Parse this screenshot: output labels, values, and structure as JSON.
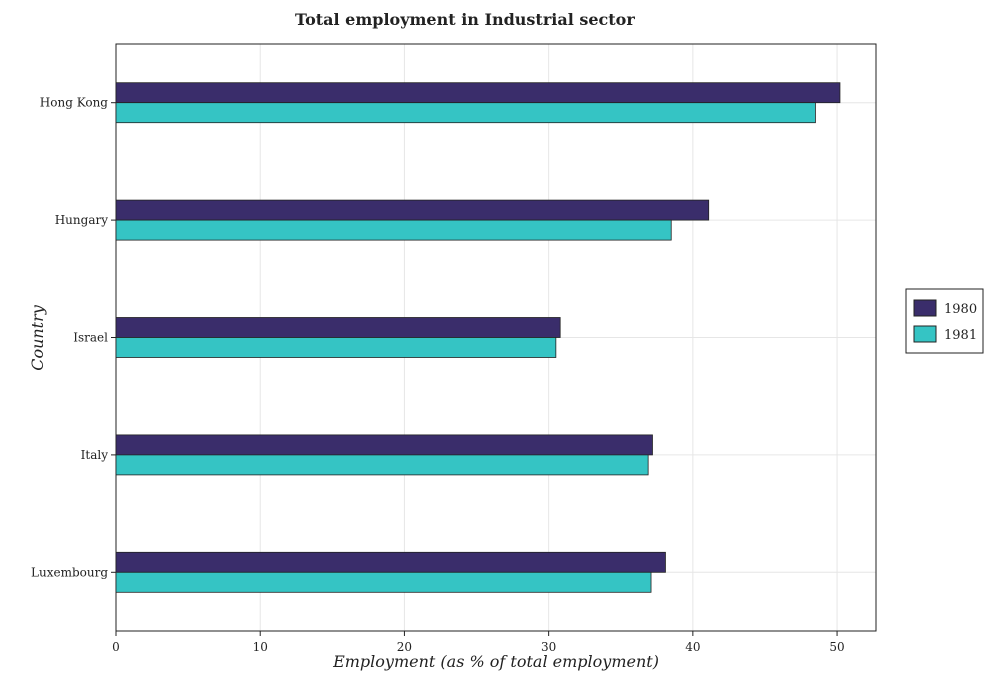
{
  "chart_data": {
    "type": "bar",
    "orientation": "horizontal",
    "title": "Total employment in Industrial sector",
    "xlabel": "Employment (as % of total employment)",
    "ylabel": "Country",
    "categories": [
      "Hong Kong",
      "Hungary",
      "Israel",
      "Italy",
      "Luxembourg"
    ],
    "series": [
      {
        "name": "1980",
        "color": "#3a2d6b",
        "values": [
          50.2,
          41.1,
          30.8,
          37.2,
          38.1
        ]
      },
      {
        "name": "1981",
        "color": "#35c4c4",
        "values": [
          48.5,
          38.5,
          30.5,
          36.9,
          37.1
        ]
      }
    ],
    "xlim": [
      0,
      52.7
    ],
    "xticks": [
      0,
      10,
      20,
      30,
      40,
      50
    ],
    "grid": true,
    "legend_position": "right"
  }
}
